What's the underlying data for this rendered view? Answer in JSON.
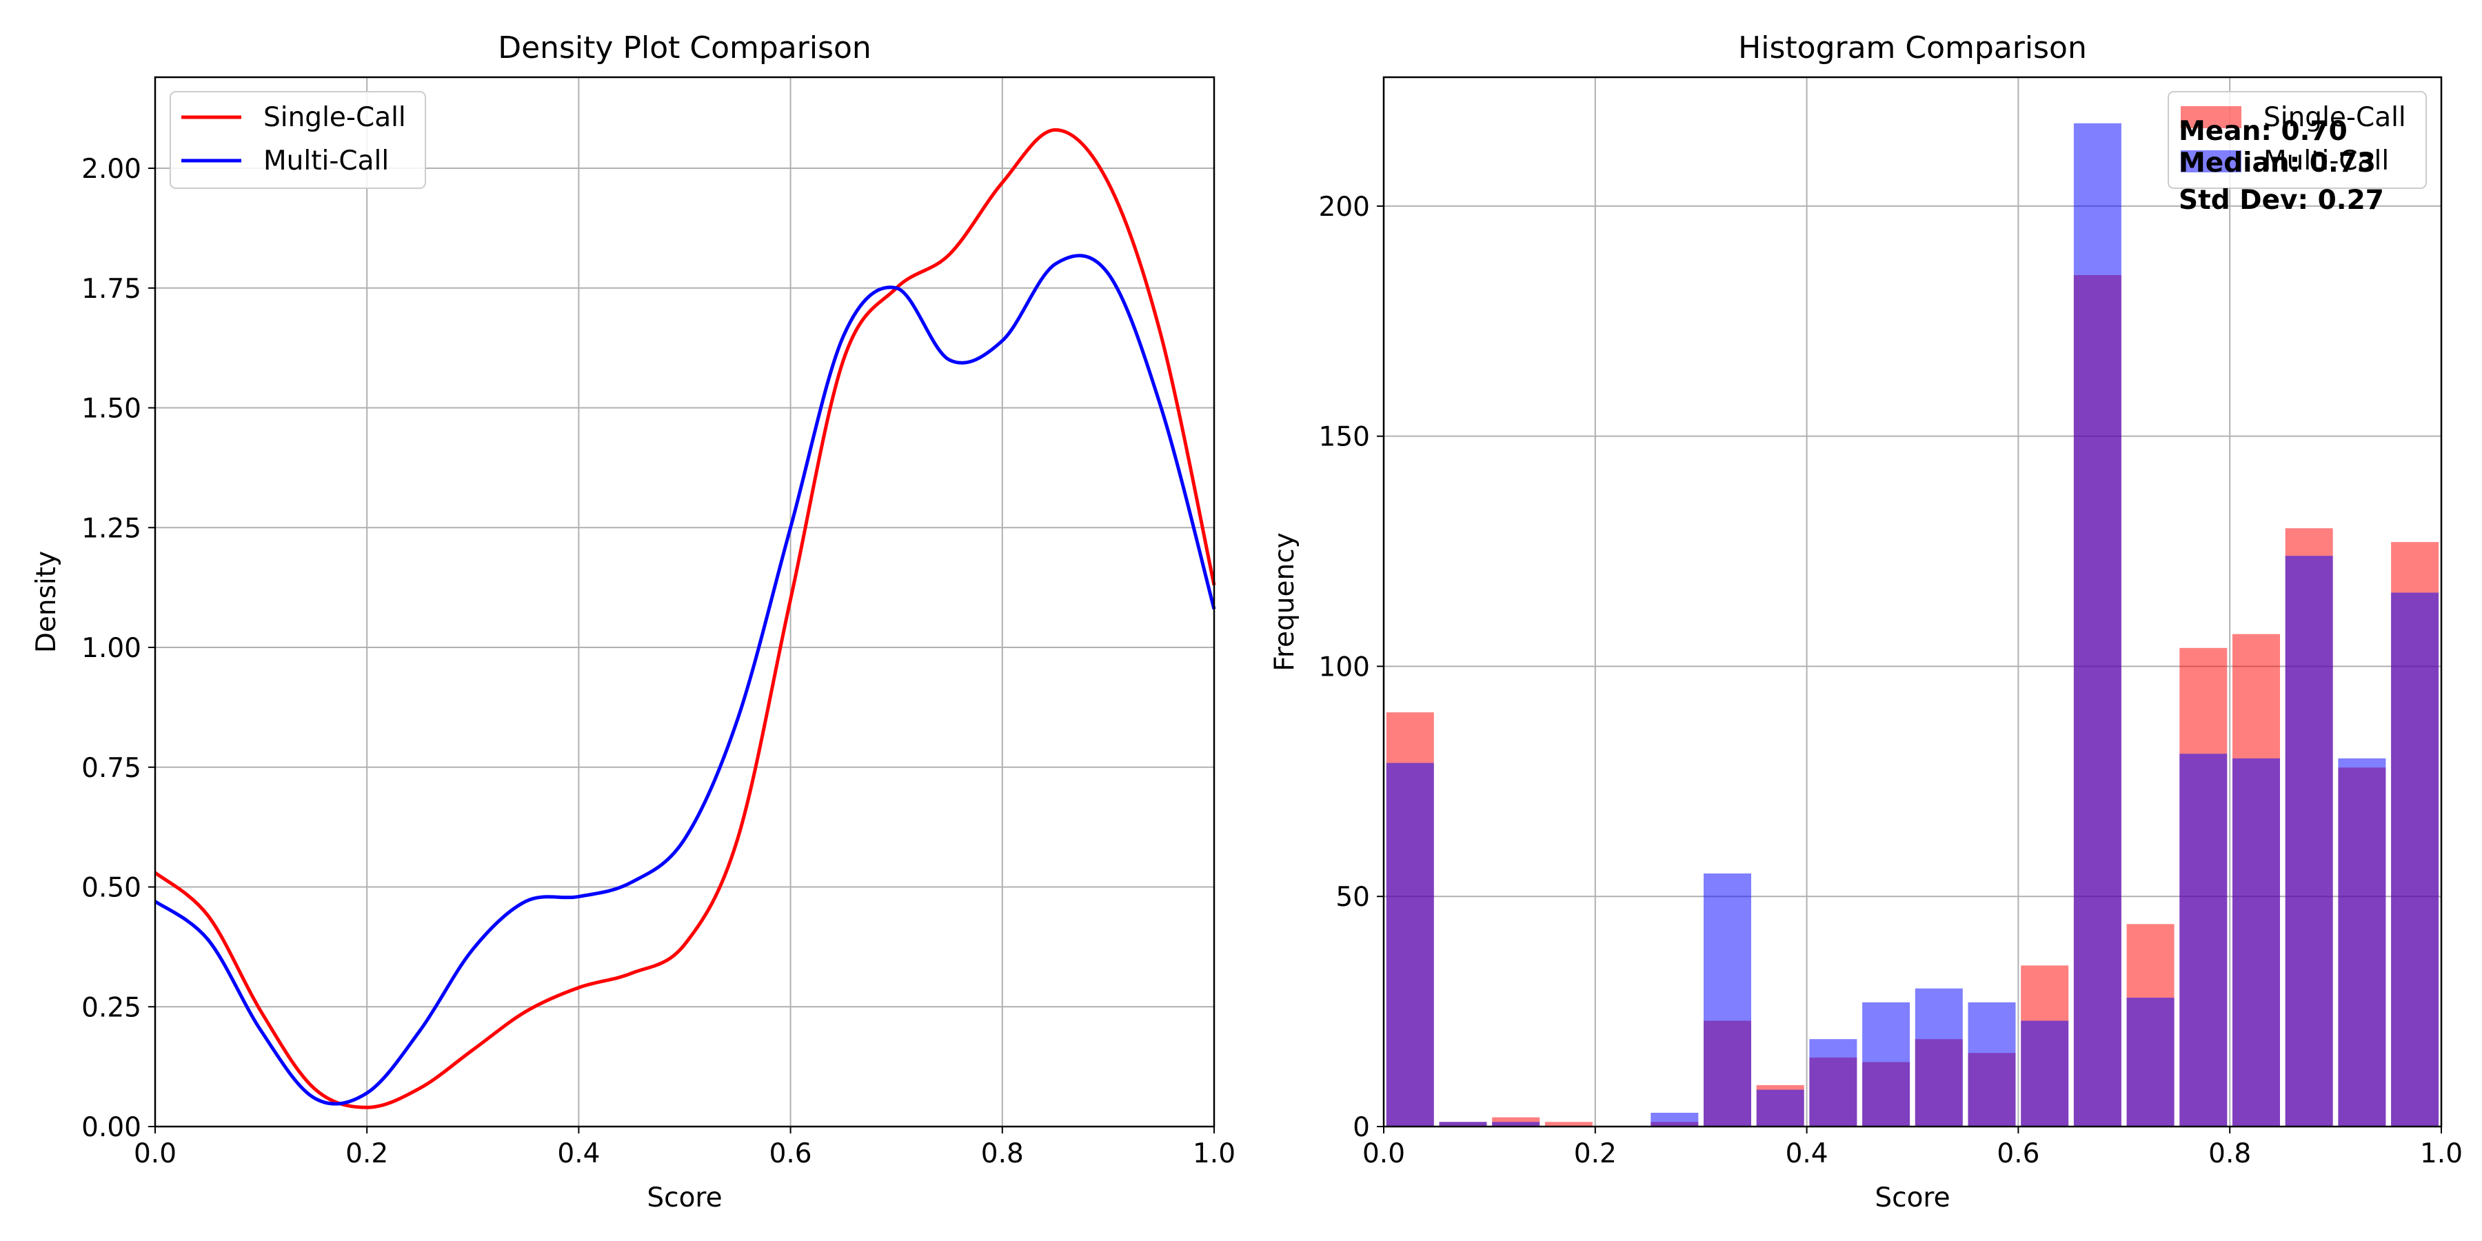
{
  "chart_data": [
    {
      "type": "line",
      "title": "Density Plot Comparison",
      "xlabel": "Score",
      "ylabel": "Density",
      "xlim": [
        0,
        1
      ],
      "ylim": [
        0,
        2.19
      ],
      "grid": true,
      "legend_position": "top-left",
      "x_ticks": [
        "0.0",
        "0.2",
        "0.4",
        "0.6",
        "0.8",
        "1.0"
      ],
      "y_ticks": [
        "0.00",
        "0.25",
        "0.50",
        "0.75",
        "1.00",
        "1.25",
        "1.50",
        "1.75",
        "2.00"
      ],
      "x": [
        0.0,
        0.05,
        0.1,
        0.15,
        0.2,
        0.25,
        0.3,
        0.35,
        0.4,
        0.45,
        0.5,
        0.55,
        0.6,
        0.65,
        0.7,
        0.75,
        0.8,
        0.85,
        0.9,
        0.95,
        1.0
      ],
      "series": [
        {
          "name": "Single-Call",
          "color": "#ff0000",
          "values": [
            0.53,
            0.44,
            0.24,
            0.08,
            0.04,
            0.08,
            0.16,
            0.24,
            0.29,
            0.32,
            0.38,
            0.6,
            1.1,
            1.6,
            1.75,
            1.82,
            1.97,
            2.08,
            1.97,
            1.65,
            1.13
          ]
        },
        {
          "name": "Multi-Call",
          "color": "#0000ff",
          "values": [
            0.47,
            0.39,
            0.2,
            0.06,
            0.07,
            0.2,
            0.37,
            0.47,
            0.48,
            0.51,
            0.6,
            0.85,
            1.25,
            1.65,
            1.75,
            1.6,
            1.64,
            1.8,
            1.78,
            1.5,
            1.08
          ]
        }
      ]
    },
    {
      "type": "bar",
      "title": "Histogram Comparison",
      "xlabel": "Score",
      "ylabel": "Frequency",
      "xlim": [
        0,
        1
      ],
      "ylim": [
        0,
        228
      ],
      "grid": true,
      "legend_position": "top-right",
      "x_ticks": [
        "0.0",
        "0.2",
        "0.4",
        "0.6",
        "0.8",
        "1.0"
      ],
      "y_ticks": [
        "0",
        "50",
        "100",
        "150",
        "200"
      ],
      "bin_width": 0.05,
      "categories": [
        0.0,
        0.05,
        0.1,
        0.15,
        0.2,
        0.25,
        0.3,
        0.35,
        0.4,
        0.45,
        0.5,
        0.55,
        0.6,
        0.65,
        0.7,
        0.75,
        0.8,
        0.85,
        0.9,
        0.95
      ],
      "series": [
        {
          "name": "Single-Call",
          "color": "#ff0000",
          "alpha": 0.5,
          "values": [
            90,
            1,
            2,
            1,
            0,
            1,
            23,
            9,
            15,
            14,
            19,
            16,
            35,
            185,
            44,
            104,
            107,
            130,
            78,
            127
          ]
        },
        {
          "name": "Multi-Call",
          "color": "#0000ff",
          "alpha": 0.5,
          "values": [
            79,
            1,
            1,
            0,
            0,
            3,
            55,
            8,
            19,
            27,
            30,
            27,
            23,
            218,
            28,
            81,
            80,
            124,
            80,
            116
          ]
        }
      ],
      "annotations": [
        {
          "text": "Mean: 0.70",
          "color": "#ffc0c0"
        },
        {
          "text": "Median: 0.73",
          "color": "#ffc0c0"
        },
        {
          "text": "Std Dev: 0.27",
          "color": "#ff0000"
        }
      ]
    }
  ]
}
